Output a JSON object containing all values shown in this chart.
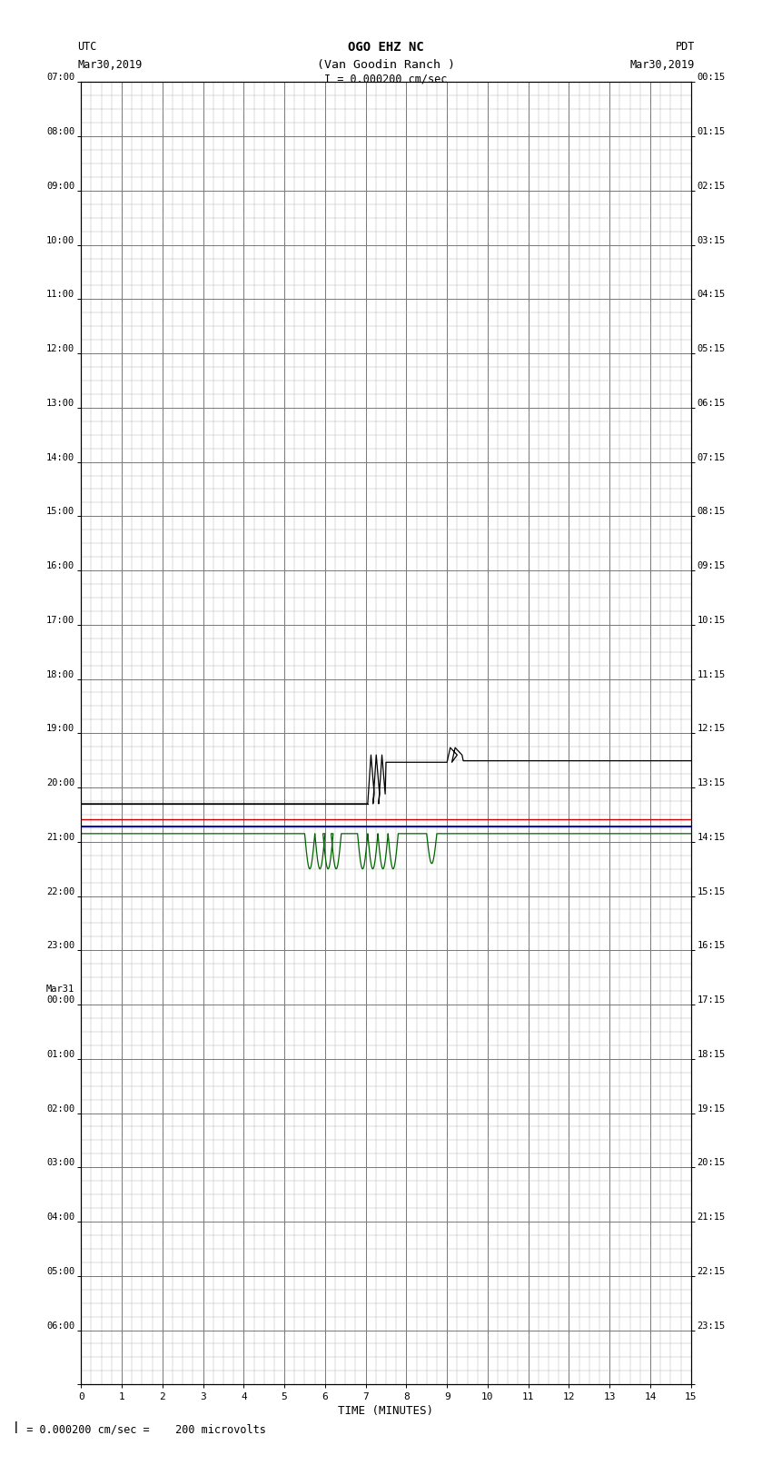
{
  "title_line1": "OGO EHZ NC",
  "title_line2": "(Van Goodin Ranch )",
  "title_line3": "I = 0.000200 cm/sec",
  "left_label": "UTC",
  "left_date": "Mar30,2019",
  "right_label": "PDT",
  "right_date": "Mar30,2019",
  "xlabel": "TIME (MINUTES)",
  "footnote": "  = 0.000200 cm/sec =    200 microvolts",
  "left_times": [
    "07:00",
    "08:00",
    "09:00",
    "10:00",
    "11:00",
    "12:00",
    "13:00",
    "14:00",
    "15:00",
    "16:00",
    "17:00",
    "18:00",
    "19:00",
    "20:00",
    "21:00",
    "22:00",
    "23:00",
    "Mar31\n00:00",
    "01:00",
    "02:00",
    "03:00",
    "04:00",
    "05:00",
    "06:00"
  ],
  "right_times": [
    "00:15",
    "01:15",
    "02:15",
    "03:15",
    "04:15",
    "05:15",
    "06:15",
    "07:15",
    "08:15",
    "09:15",
    "10:15",
    "11:15",
    "12:15",
    "13:15",
    "14:15",
    "15:15",
    "16:15",
    "17:15",
    "18:15",
    "19:15",
    "20:15",
    "21:15",
    "22:15",
    "23:15"
  ],
  "num_rows": 24,
  "num_cols": 15,
  "minor_cols": 4,
  "minor_rows": 4,
  "bg_color": "#ffffff",
  "grid_major_color": "#777777",
  "grid_minor_color": "#aaaaaa",
  "signal_color_black": "#000000",
  "signal_color_green": "#006400",
  "signal_color_red": "#cc0000",
  "signal_color_blue": "#0000aa",
  "black_baseline_row": 13.3,
  "green_baseline_row": 13.85,
  "red_line_row": 13.58,
  "blue_line_row": 13.72
}
